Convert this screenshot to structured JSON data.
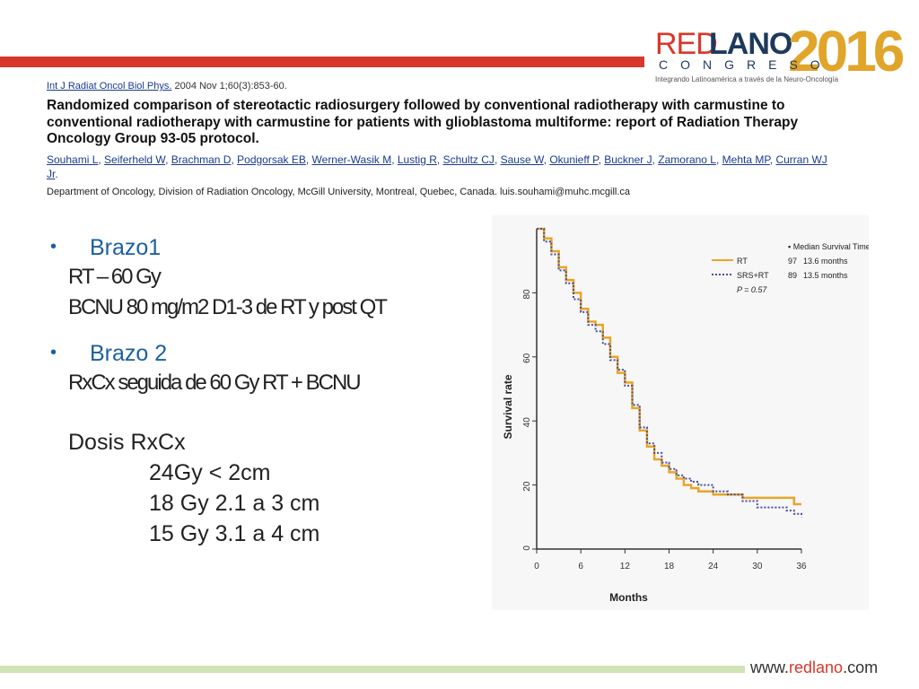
{
  "header": {
    "logo_red": "RED",
    "logo_lano": "LANO",
    "logo_year": "2016",
    "logo_congreso": "CONGRESO",
    "logo_tagline": "Integrando Latinoamérica a través de la Neuro-Oncología"
  },
  "citation": {
    "journal": "Int J Radiat Oncol Biol Phys.",
    "journal_ref": " 2004 Nov 1;60(3):853-60.",
    "title": "Randomized comparison of stereotactic radiosurgery followed by conventional radiotherapy with carmustine to conventional radiotherapy with carmustine for patients with glioblastoma multiforme: report of Radiation Therapy Oncology Group 93-05 protocol.",
    "authors": [
      "Souhami L",
      "Seiferheld W",
      "Brachman D",
      "Podgorsak EB",
      "Werner-Wasik M",
      "Lustig R",
      "Schultz CJ",
      "Sause W",
      "Okunieff P",
      "Buckner J",
      "Zamorano L",
      "Mehta MP",
      "Curran WJ Jr"
    ],
    "affiliation": "Department of Oncology, Division of Radiation Oncology, McGill University, Montreal, Quebec, Canada. luis.souhami@muhc.mcgill.ca"
  },
  "left": {
    "arm1_title": "Brazo1",
    "arm1_line1": "RT – 60 Gy",
    "arm1_line2": "BCNU 80 mg/m2 D1-3 de    RT y post QT",
    "arm2_title": "Brazo 2",
    "arm2_line1": "RxCx seguida de 60 Gy RT + BCNU",
    "dose_title": "Dosis RxCx",
    "dose_rows": [
      "24Gy   < 2cm",
      "18 Gy   2.1 a 3 cm",
      "15 Gy   3.1 a 4 cm"
    ]
  },
  "footer": {
    "url_prefix": "www.",
    "url_red": "redlano",
    "url_suffix": ".com"
  },
  "chart_data": {
    "type": "line",
    "xlabel": "Months",
    "ylabel": "Survival rate",
    "xlim": [
      0,
      36
    ],
    "ylim": [
      0,
      100
    ],
    "xticks": [
      0,
      6,
      12,
      18,
      24,
      30,
      36
    ],
    "yticks": [
      0,
      20,
      40,
      60,
      80
    ],
    "legend_placement": "top-right",
    "legend_header": "Median Survival Time",
    "stat": "P = 0.57",
    "series": [
      {
        "name": "RT",
        "color": "#e8a52a",
        "style": "solid",
        "n": "97",
        "median": "13.6 months",
        "x": [
          0,
          1,
          2,
          3,
          4,
          5,
          6,
          7,
          8,
          9,
          10,
          11,
          12,
          13,
          14,
          15,
          16,
          17,
          18,
          19,
          20,
          21,
          22,
          24,
          26,
          28,
          30,
          32,
          34,
          35,
          36
        ],
        "y": [
          100,
          97,
          93,
          88,
          84,
          80,
          75,
          71,
          70,
          66,
          60,
          55,
          52,
          44,
          37,
          32,
          28,
          26,
          24,
          22,
          20,
          19,
          18,
          17,
          17,
          16,
          16,
          16,
          16,
          14,
          14
        ]
      },
      {
        "name": "SRS+RT",
        "color": "#4a4f9a",
        "style": "dotted",
        "n": "89",
        "median": "13.5 months",
        "x": [
          0,
          1,
          2,
          3,
          4,
          5,
          6,
          7,
          8,
          9,
          10,
          11,
          12,
          13,
          14,
          15,
          16,
          17,
          18,
          19,
          20,
          21,
          22,
          24,
          26,
          28,
          30,
          32,
          34,
          35,
          36
        ],
        "y": [
          100,
          96,
          92,
          87,
          83,
          78,
          74,
          70,
          68,
          64,
          59,
          56,
          51,
          45,
          38,
          33,
          30,
          27,
          25,
          23,
          22,
          21,
          20,
          18,
          17,
          15,
          13,
          13,
          12,
          11,
          10
        ]
      }
    ]
  }
}
